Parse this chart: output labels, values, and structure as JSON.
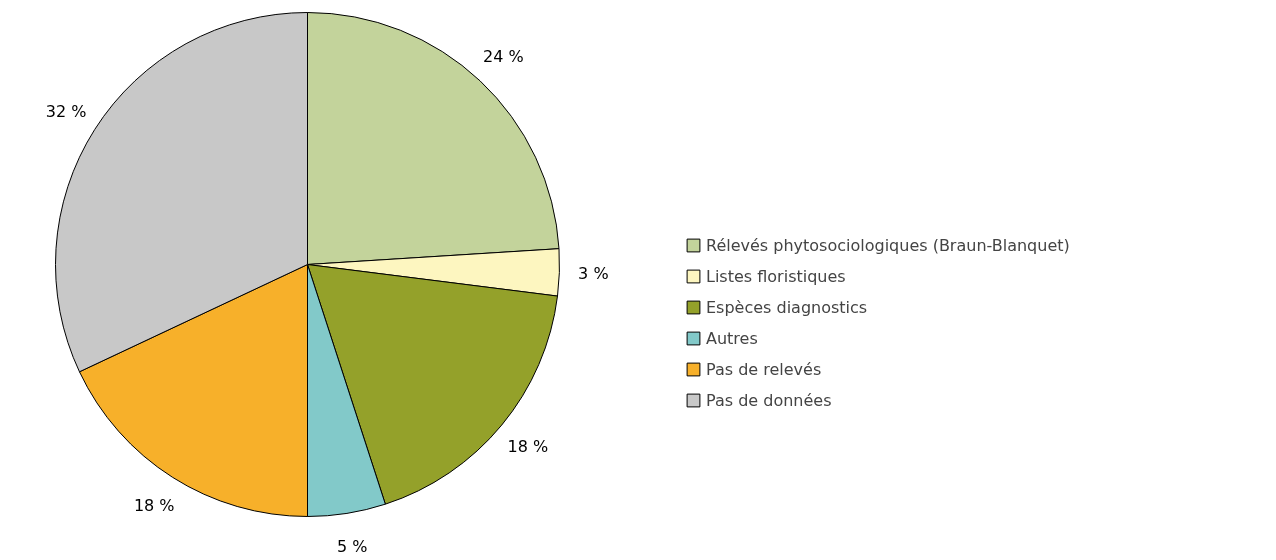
{
  "chart_data": {
    "type": "pie",
    "categories": [
      "Rélevés phytosociologiques (Braun-Blanquet)",
      "Listes floristiques",
      "Espèces diagnostics",
      "Autres",
      "Pas de relevés",
      "Pas de données"
    ],
    "values": [
      24,
      3,
      18,
      5,
      18,
      32
    ],
    "value_labels": [
      "24 %",
      "3 %",
      "18 %",
      "5 %",
      "18 %",
      "32 %"
    ],
    "colors": [
      "#c3d39b",
      "#fdf6c0",
      "#94a12a",
      "#82c9c9",
      "#f7b02a",
      "#c8c8c8"
    ],
    "legend": "right"
  }
}
